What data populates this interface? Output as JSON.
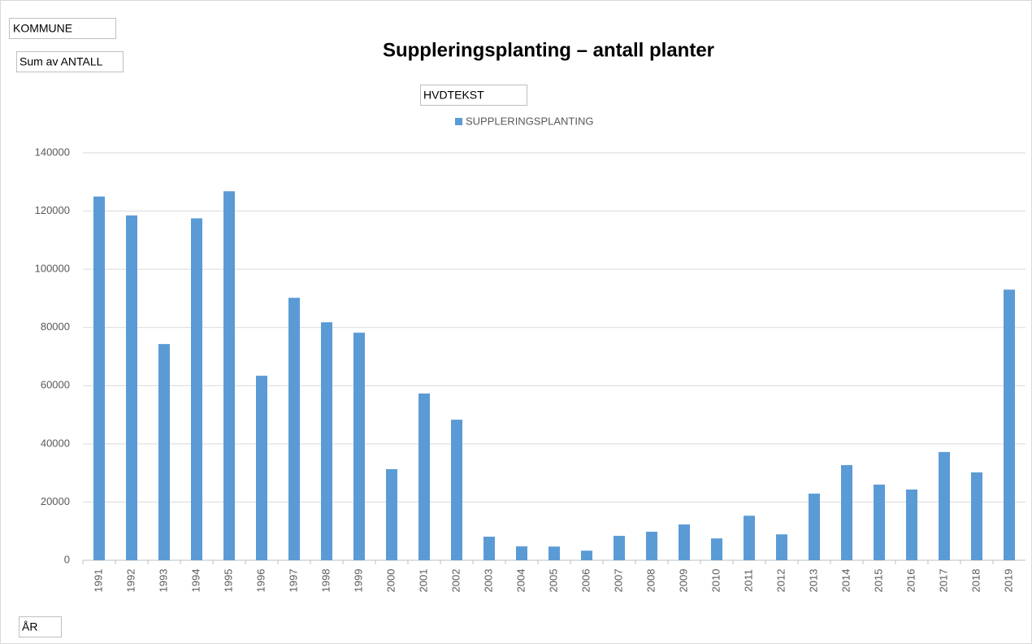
{
  "pivot_fields": {
    "filter": "KOMMUNE",
    "values": "Sum av ANTALL",
    "legend": "HVDTEKST",
    "axis": "ÅR"
  },
  "chart_data": {
    "type": "bar",
    "title": "Suppleringsplanting – antall planter",
    "categories": [
      "1991",
      "1992",
      "1993",
      "1994",
      "1995",
      "1996",
      "1997",
      "1998",
      "1999",
      "2000",
      "2001",
      "2002",
      "2003",
      "2004",
      "2005",
      "2006",
      "2007",
      "2008",
      "2009",
      "2010",
      "2011",
      "2012",
      "2013",
      "2014",
      "2015",
      "2016",
      "2017",
      "2018",
      "2019"
    ],
    "series": [
      {
        "name": "SUPPLERINGSPLANTING",
        "color": "#5b9bd5",
        "values": [
          125000,
          118500,
          74300,
          117500,
          126800,
          63400,
          90200,
          81800,
          78200,
          31300,
          57300,
          48300,
          8100,
          4800,
          4700,
          3300,
          8400,
          9800,
          12300,
          7500,
          15300,
          8900,
          22900,
          32700,
          26000,
          24300,
          37200,
          30200,
          93000
        ]
      }
    ],
    "ylim": [
      0,
      140000
    ],
    "yticks": [
      0,
      20000,
      40000,
      60000,
      80000,
      100000,
      120000,
      140000
    ],
    "grid": true
  }
}
